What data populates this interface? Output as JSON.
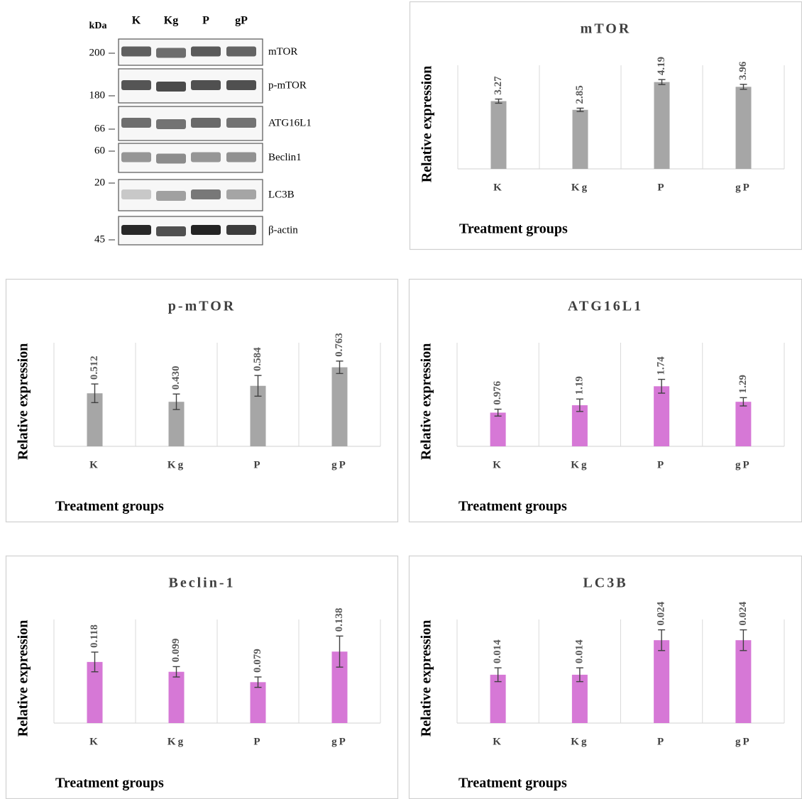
{
  "blot": {
    "header": "kDa",
    "lanes": [
      "K",
      "Kg",
      "P",
      "gP"
    ],
    "markers": [
      "200",
      "180",
      "66",
      "60",
      "20",
      "45"
    ],
    "proteins": [
      "mTOR",
      "p-mTOR",
      "ATG16L1",
      "Beclin1",
      "LC3B",
      "β-actin"
    ]
  },
  "chart_data": [
    {
      "type": "bar",
      "title": "mTOR",
      "ylabel": "Relative expression",
      "xlabel": "Treatment groups",
      "categories": [
        "K",
        "Kg",
        "P",
        "gP"
      ],
      "values": [
        3.27,
        2.85,
        4.19,
        3.96
      ],
      "errors": [
        0.1,
        0.08,
        0.12,
        0.12
      ],
      "color": "#a6a6a6",
      "ylim": [
        0,
        5
      ],
      "grid": true
    },
    {
      "type": "bar",
      "title": "p-mTOR",
      "ylabel": "Relative expression",
      "xlabel": "Treatment groups",
      "categories": [
        "K",
        "Kg",
        "P",
        "gP"
      ],
      "values": [
        0.512,
        0.43,
        0.584,
        0.763
      ],
      "value_labels": [
        "0.512",
        "0.430",
        "0.584",
        "0.763"
      ],
      "errors": [
        0.09,
        0.075,
        0.1,
        0.06
      ],
      "color": "#a6a6a6",
      "ylim": [
        0,
        1
      ],
      "grid": true
    },
    {
      "type": "bar",
      "title": "ATG16L1",
      "ylabel": "Relative expression",
      "xlabel": "Treatment groups",
      "categories": [
        "K",
        "Kg",
        "P",
        "gP"
      ],
      "values": [
        0.976,
        1.19,
        1.74,
        1.29
      ],
      "errors": [
        0.1,
        0.18,
        0.2,
        0.12
      ],
      "color": "#d678d6",
      "ylim": [
        0,
        3
      ],
      "grid": true
    },
    {
      "type": "bar",
      "title": "Beclin-1",
      "ylabel": "Relative expression",
      "xlabel": "Treatment groups",
      "categories": [
        "K",
        "Kg",
        "P",
        "gP"
      ],
      "values": [
        0.118,
        0.099,
        0.079,
        0.138
      ],
      "errors": [
        0.019,
        0.01,
        0.01,
        0.03
      ],
      "color": "#d678d6",
      "ylim": [
        0,
        0.2
      ],
      "grid": true
    },
    {
      "type": "bar",
      "title": "LC3B",
      "ylabel": "Relative expression",
      "xlabel": "Treatment groups",
      "categories": [
        "K",
        "Kg",
        "P",
        "gP"
      ],
      "values": [
        0.014,
        0.014,
        0.024,
        0.024
      ],
      "errors": [
        0.002,
        0.002,
        0.003,
        0.003
      ],
      "color": "#d678d6",
      "ylim": [
        0,
        0.03
      ],
      "grid": true
    }
  ]
}
